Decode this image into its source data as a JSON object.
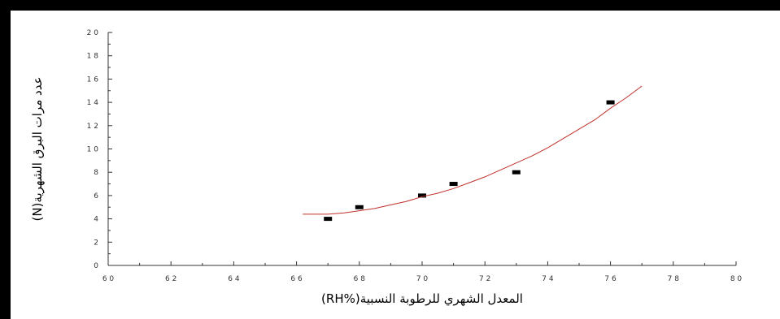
{
  "chart_data": {
    "type": "scatter",
    "title": "",
    "xlabel": "(RH%)المعدل الشهري للرطوبة النسبية",
    "ylabel": "(N)عدد مرات البرق الشهرية",
    "xlim": [
      60,
      80
    ],
    "ylim": [
      0,
      20
    ],
    "x_ticks": [
      60,
      62,
      64,
      66,
      68,
      70,
      72,
      74,
      76,
      78,
      80
    ],
    "y_ticks": [
      0,
      2,
      4,
      6,
      8,
      10,
      12,
      14,
      16,
      18,
      20
    ],
    "x_tick_labels": [
      "6 0",
      "6 2",
      "6 4",
      "6 6",
      "6 8",
      "7 0",
      "7 2",
      "7 4",
      "7 6",
      "7 8",
      "8 0"
    ],
    "y_tick_labels": [
      "0",
      "2",
      "4",
      "6",
      "8",
      "1 0",
      "1 2",
      "1 4",
      "1 6",
      "1 8",
      "2 0"
    ],
    "series": [
      {
        "type": "scatter",
        "x": [
          67,
          68,
          70,
          71,
          73,
          76
        ],
        "y": [
          4,
          5,
          6,
          7,
          8,
          14
        ],
        "color": "#000000"
      },
      {
        "type": "line",
        "x": [
          66.2,
          66.6,
          67.0,
          67.5,
          68.0,
          68.5,
          69.0,
          69.5,
          70.0,
          70.5,
          71.0,
          71.5,
          72.0,
          72.5,
          73.0,
          73.5,
          74.0,
          74.5,
          75.0,
          75.5,
          76.0,
          76.5,
          77.0
        ],
        "y": [
          4.4,
          4.4,
          4.4,
          4.5,
          4.7,
          4.9,
          5.2,
          5.5,
          5.9,
          6.2,
          6.6,
          7.1,
          7.6,
          8.2,
          8.8,
          9.4,
          10.1,
          10.9,
          11.7,
          12.5,
          13.5,
          14.4,
          15.4
        ],
        "color": "#c0302a"
      }
    ],
    "grid": false,
    "legend": "none"
  },
  "colors": {
    "frame": "#000000",
    "fit_line": "#c0302a",
    "markers": "#000000"
  }
}
